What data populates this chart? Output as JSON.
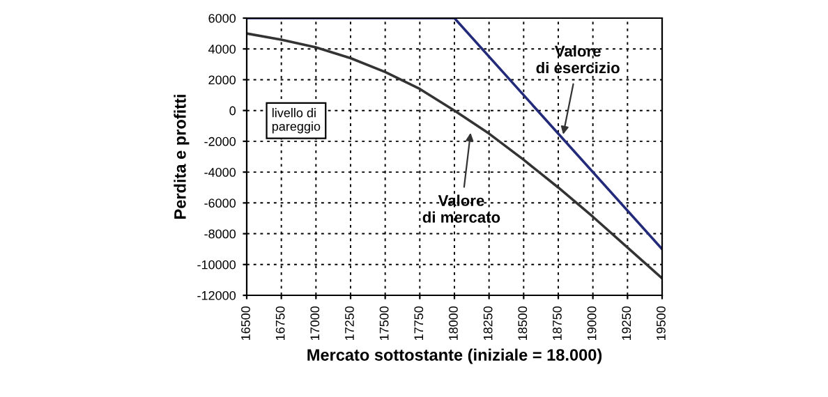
{
  "chart_data": {
    "type": "line",
    "xlabel": "Mercato sottostante (iniziale = 18.000)",
    "ylabel": "Perdita e profitti",
    "series": [
      {
        "color": "#232a7a",
        "x": [
          16500,
          18000,
          19500
        ],
        "values": [
          6000,
          6000,
          -9000
        ]
      },
      {
        "color": "#333333",
        "x": [
          16500,
          16750,
          17000,
          17250,
          17500,
          17750,
          18000,
          18250,
          18500,
          18750,
          19000,
          19250,
          19500
        ],
        "values": [
          5000,
          4600,
          4100,
          3400,
          2500,
          1400,
          0,
          -1500,
          -3200,
          -5000,
          -6900,
          -8900,
          -10900
        ]
      }
    ],
    "annotations": [
      "livello di\npareggio",
      {
        "text": "Valore\ndi mercato",
        "x": 18120,
        "y": -1200
      },
      {
        "text": "Valore\ndi esercizio",
        "x": 18780,
        "y": -1800
      }
    ],
    "xlim": [
      16500,
      19500
    ],
    "ylim": [
      -12000,
      6000
    ],
    "xticks": [
      16500,
      16750,
      17000,
      17250,
      17500,
      17750,
      18000,
      18250,
      18500,
      18750,
      19000,
      19250,
      19500
    ],
    "yticks": [
      -12000,
      -10000,
      -8000,
      -6000,
      -4000,
      -2000,
      0,
      2000,
      4000,
      6000
    ],
    "grid": true,
    "marker": "none",
    "line_style": "solid"
  }
}
